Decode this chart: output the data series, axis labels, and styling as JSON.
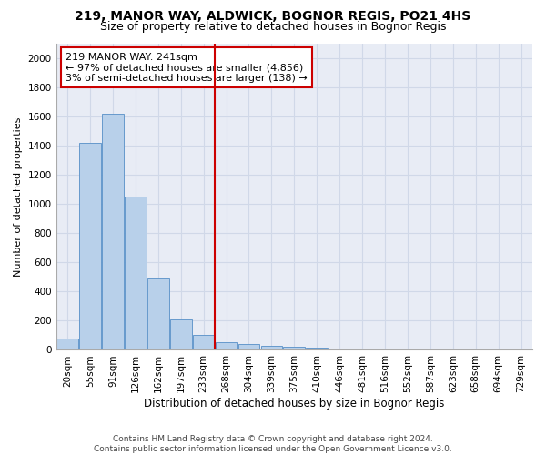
{
  "title1": "219, MANOR WAY, ALDWICK, BOGNOR REGIS, PO21 4HS",
  "title2": "Size of property relative to detached houses in Bognor Regis",
  "xlabel": "Distribution of detached houses by size in Bognor Regis",
  "ylabel": "Number of detached properties",
  "categories": [
    "20sqm",
    "55sqm",
    "91sqm",
    "126sqm",
    "162sqm",
    "197sqm",
    "233sqm",
    "268sqm",
    "304sqm",
    "339sqm",
    "375sqm",
    "410sqm",
    "446sqm",
    "481sqm",
    "516sqm",
    "552sqm",
    "587sqm",
    "623sqm",
    "658sqm",
    "694sqm",
    "729sqm"
  ],
  "values": [
    80,
    1420,
    1620,
    1050,
    490,
    210,
    105,
    50,
    40,
    25,
    20,
    15,
    0,
    0,
    0,
    0,
    0,
    0,
    0,
    0,
    0
  ],
  "bar_color": "#b8d0ea",
  "bar_edge_color": "#6699cc",
  "vline_x": 6.5,
  "vline_color": "#cc0000",
  "annotation_text": "219 MANOR WAY: 241sqm\n← 97% of detached houses are smaller (4,856)\n3% of semi-detached houses are larger (138) →",
  "annotation_box_color": "#ffffff",
  "annotation_box_edge": "#cc0000",
  "ylim": [
    0,
    2100
  ],
  "yticks": [
    0,
    200,
    400,
    600,
    800,
    1000,
    1200,
    1400,
    1600,
    1800,
    2000
  ],
  "grid_color": "#d0d8e8",
  "bg_color": "#e8ecf5",
  "footer": "Contains HM Land Registry data © Crown copyright and database right 2024.\nContains public sector information licensed under the Open Government Licence v3.0.",
  "title1_fontsize": 10,
  "title2_fontsize": 9,
  "xlabel_fontsize": 8.5,
  "ylabel_fontsize": 8,
  "tick_fontsize": 7.5,
  "annotation_fontsize": 8,
  "footer_fontsize": 6.5
}
